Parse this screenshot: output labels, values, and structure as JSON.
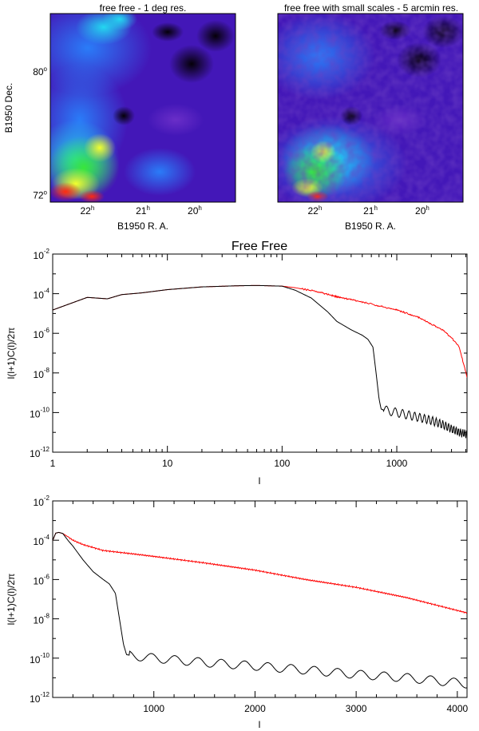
{
  "maps": [
    {
      "title": "free free - 1 deg res.",
      "xlabel": "B1950 R. A.",
      "ylabel": "B1950 Dec.",
      "x_ticks": [
        {
          "value": "22",
          "unit": "h"
        },
        {
          "value": "21",
          "unit": "h"
        },
        {
          "value": "20",
          "unit": "h"
        }
      ],
      "y_ticks": [
        {
          "value": "80",
          "unit": "o"
        },
        {
          "value": "72",
          "unit": "o"
        }
      ],
      "resolution": "smooth"
    },
    {
      "title": "free free with small scales - 5 arcmin res.",
      "xlabel": "B1950 R. A.",
      "ylabel": "",
      "x_ticks": [
        {
          "value": "22",
          "unit": "h"
        },
        {
          "value": "21",
          "unit": "h"
        },
        {
          "value": "20",
          "unit": "h"
        }
      ],
      "y_ticks": [],
      "resolution": "fine"
    }
  ],
  "chart_data": [
    {
      "type": "line",
      "title": "Free Free",
      "xlabel": "l",
      "ylabel": "l(l+1)C(l)/2π",
      "xscale": "log",
      "yscale": "log",
      "xlim": [
        1,
        4096
      ],
      "ylim": [
        1e-12,
        0.01
      ],
      "x_ticks": [
        {
          "value": 1,
          "label": "1"
        },
        {
          "value": 10,
          "label": "10"
        },
        {
          "value": 100,
          "label": "100"
        },
        {
          "value": 1000,
          "label": "1000"
        }
      ],
      "y_ticks": [
        {
          "value": 0.01,
          "base": "10",
          "exp": "-2"
        },
        {
          "value": 0.0001,
          "base": "10",
          "exp": "-4"
        },
        {
          "value": 1e-06,
          "base": "10",
          "exp": "-6"
        },
        {
          "value": 1e-08,
          "base": "10",
          "exp": "-8"
        },
        {
          "value": 1e-10,
          "base": "10",
          "exp": "-10"
        },
        {
          "value": 1e-12,
          "base": "10",
          "exp": "-12"
        }
      ],
      "series": [
        {
          "name": "free free with small scales",
          "color": "#ff0000",
          "x": [
            1,
            2,
            3,
            4,
            6,
            10,
            20,
            40,
            60,
            100,
            130,
            200,
            300,
            400,
            600,
            1000,
            1500,
            2000,
            2500,
            3000,
            3500,
            4096
          ],
          "y": [
            1.5e-05,
            6.5e-05,
            5.5e-05,
            9e-05,
            0.00011,
            0.00016,
            0.00022,
            0.00025,
            0.00026,
            0.00024,
            0.0002,
            0.00013,
            7e-05,
            5e-05,
            3e-05,
            1.5e-05,
            7e-06,
            3e-06,
            1.5e-06,
            6e-07,
            2e-07,
            6e-09
          ]
        },
        {
          "name": "free free - 1 deg res.",
          "color": "#000000",
          "x": [
            1,
            2,
            3,
            4,
            6,
            10,
            20,
            40,
            60,
            100,
            130,
            180,
            250,
            300,
            400,
            500,
            560,
            620,
            660,
            700,
            730,
            800,
            1000,
            1500,
            2000,
            2500,
            3000,
            3500,
            4096
          ],
          "y": [
            1.5e-05,
            6.5e-05,
            5.5e-05,
            9e-05,
            0.00011,
            0.00016,
            0.00022,
            0.00025,
            0.00026,
            0.00024,
            0.00015,
            6e-05,
            1.2e-05,
            4e-06,
            1.5e-06,
            8e-07,
            5e-07,
            2e-07,
            1e-08,
            5e-10,
            1.5e-10,
            1.3e-10,
            1e-10,
            6e-11,
            4e-11,
            2.5e-11,
            1.5e-11,
            1e-11,
            8e-12
          ]
        }
      ]
    },
    {
      "type": "line",
      "title": "",
      "xlabel": "l",
      "ylabel": "l(l+1)C(l)/2π",
      "xscale": "linear",
      "yscale": "log",
      "xlim": [
        0,
        4096
      ],
      "ylim": [
        1e-12,
        0.01
      ],
      "x_ticks": [
        {
          "value": 1000,
          "label": "1000"
        },
        {
          "value": 2000,
          "label": "2000"
        },
        {
          "value": 3000,
          "label": "3000"
        },
        {
          "value": 4000,
          "label": "4000"
        }
      ],
      "y_ticks": [
        {
          "value": 0.01,
          "base": "10",
          "exp": "-2"
        },
        {
          "value": 0.0001,
          "base": "10",
          "exp": "-4"
        },
        {
          "value": 1e-06,
          "base": "10",
          "exp": "-6"
        },
        {
          "value": 1e-08,
          "base": "10",
          "exp": "-8"
        },
        {
          "value": 1e-10,
          "base": "10",
          "exp": "-10"
        },
        {
          "value": 1e-12,
          "base": "10",
          "exp": "-12"
        }
      ],
      "series": [
        {
          "name": "free free with small scales",
          "color": "#ff0000",
          "x": [
            1,
            30,
            60,
            100,
            150,
            200,
            300,
            500,
            800,
            1000,
            1500,
            2000,
            2500,
            3000,
            3500,
            4096
          ],
          "y": [
            0.0001,
            0.00023,
            0.00025,
            0.00022,
            0.00015,
            0.0001,
            6e-05,
            3e-05,
            2e-05,
            1.5e-05,
            7e-06,
            3e-06,
            1e-06,
            4e-07,
            1.2e-07,
            2e-08
          ]
        },
        {
          "name": "free free - 1 deg res.",
          "color": "#000000",
          "x": [
            1,
            30,
            60,
            100,
            150,
            200,
            300,
            400,
            500,
            560,
            620,
            660,
            700,
            730,
            800,
            1000,
            1500,
            2000,
            2500,
            3000,
            3500,
            4096
          ],
          "y": [
            0.0001,
            0.00023,
            0.00025,
            0.00022,
            0.0001,
            5e-05,
            1e-05,
            2.5e-06,
            1e-06,
            6e-07,
            2e-07,
            1e-08,
            5e-10,
            1.5e-10,
            1.3e-10,
            1e-10,
            6e-11,
            4e-11,
            2.5e-11,
            1.5e-11,
            1e-11,
            5e-12
          ]
        }
      ]
    }
  ]
}
